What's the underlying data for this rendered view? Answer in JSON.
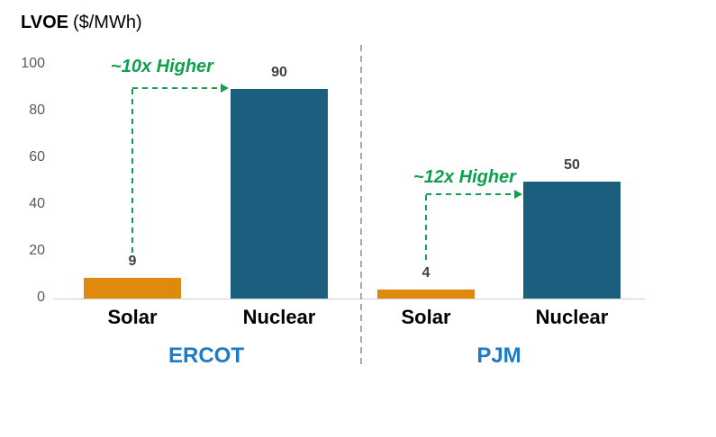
{
  "title": {
    "prefix": "LVOE",
    "suffix": "($/MWh)"
  },
  "chart_data": {
    "type": "bar",
    "title": "LVOE ($/MWh)",
    "ylabel": "LVOE ($/MWh)",
    "ylim": [
      0,
      100
    ],
    "y_tick_labels": [
      "100",
      "80",
      "60",
      "40",
      "20",
      "0"
    ],
    "grid": false,
    "legend": "none",
    "groups": [
      {
        "name": "ERCOT",
        "categories": [
          "Solar",
          "Nuclear"
        ],
        "values": [
          9,
          90
        ],
        "annotation": "~10x Higher"
      },
      {
        "name": "PJM",
        "categories": [
          "Solar",
          "Nuclear"
        ],
        "values": [
          4,
          50
        ],
        "annotation": "~12x Higher"
      }
    ],
    "bar_colors": {
      "Solar": "#E0890F",
      "Nuclear": "#1B5F7F"
    },
    "annotation_color": "#0FA04E",
    "group_label_color": "#1D7AC4",
    "value_label_color": "#404040",
    "axis_label_color": "#595959"
  }
}
